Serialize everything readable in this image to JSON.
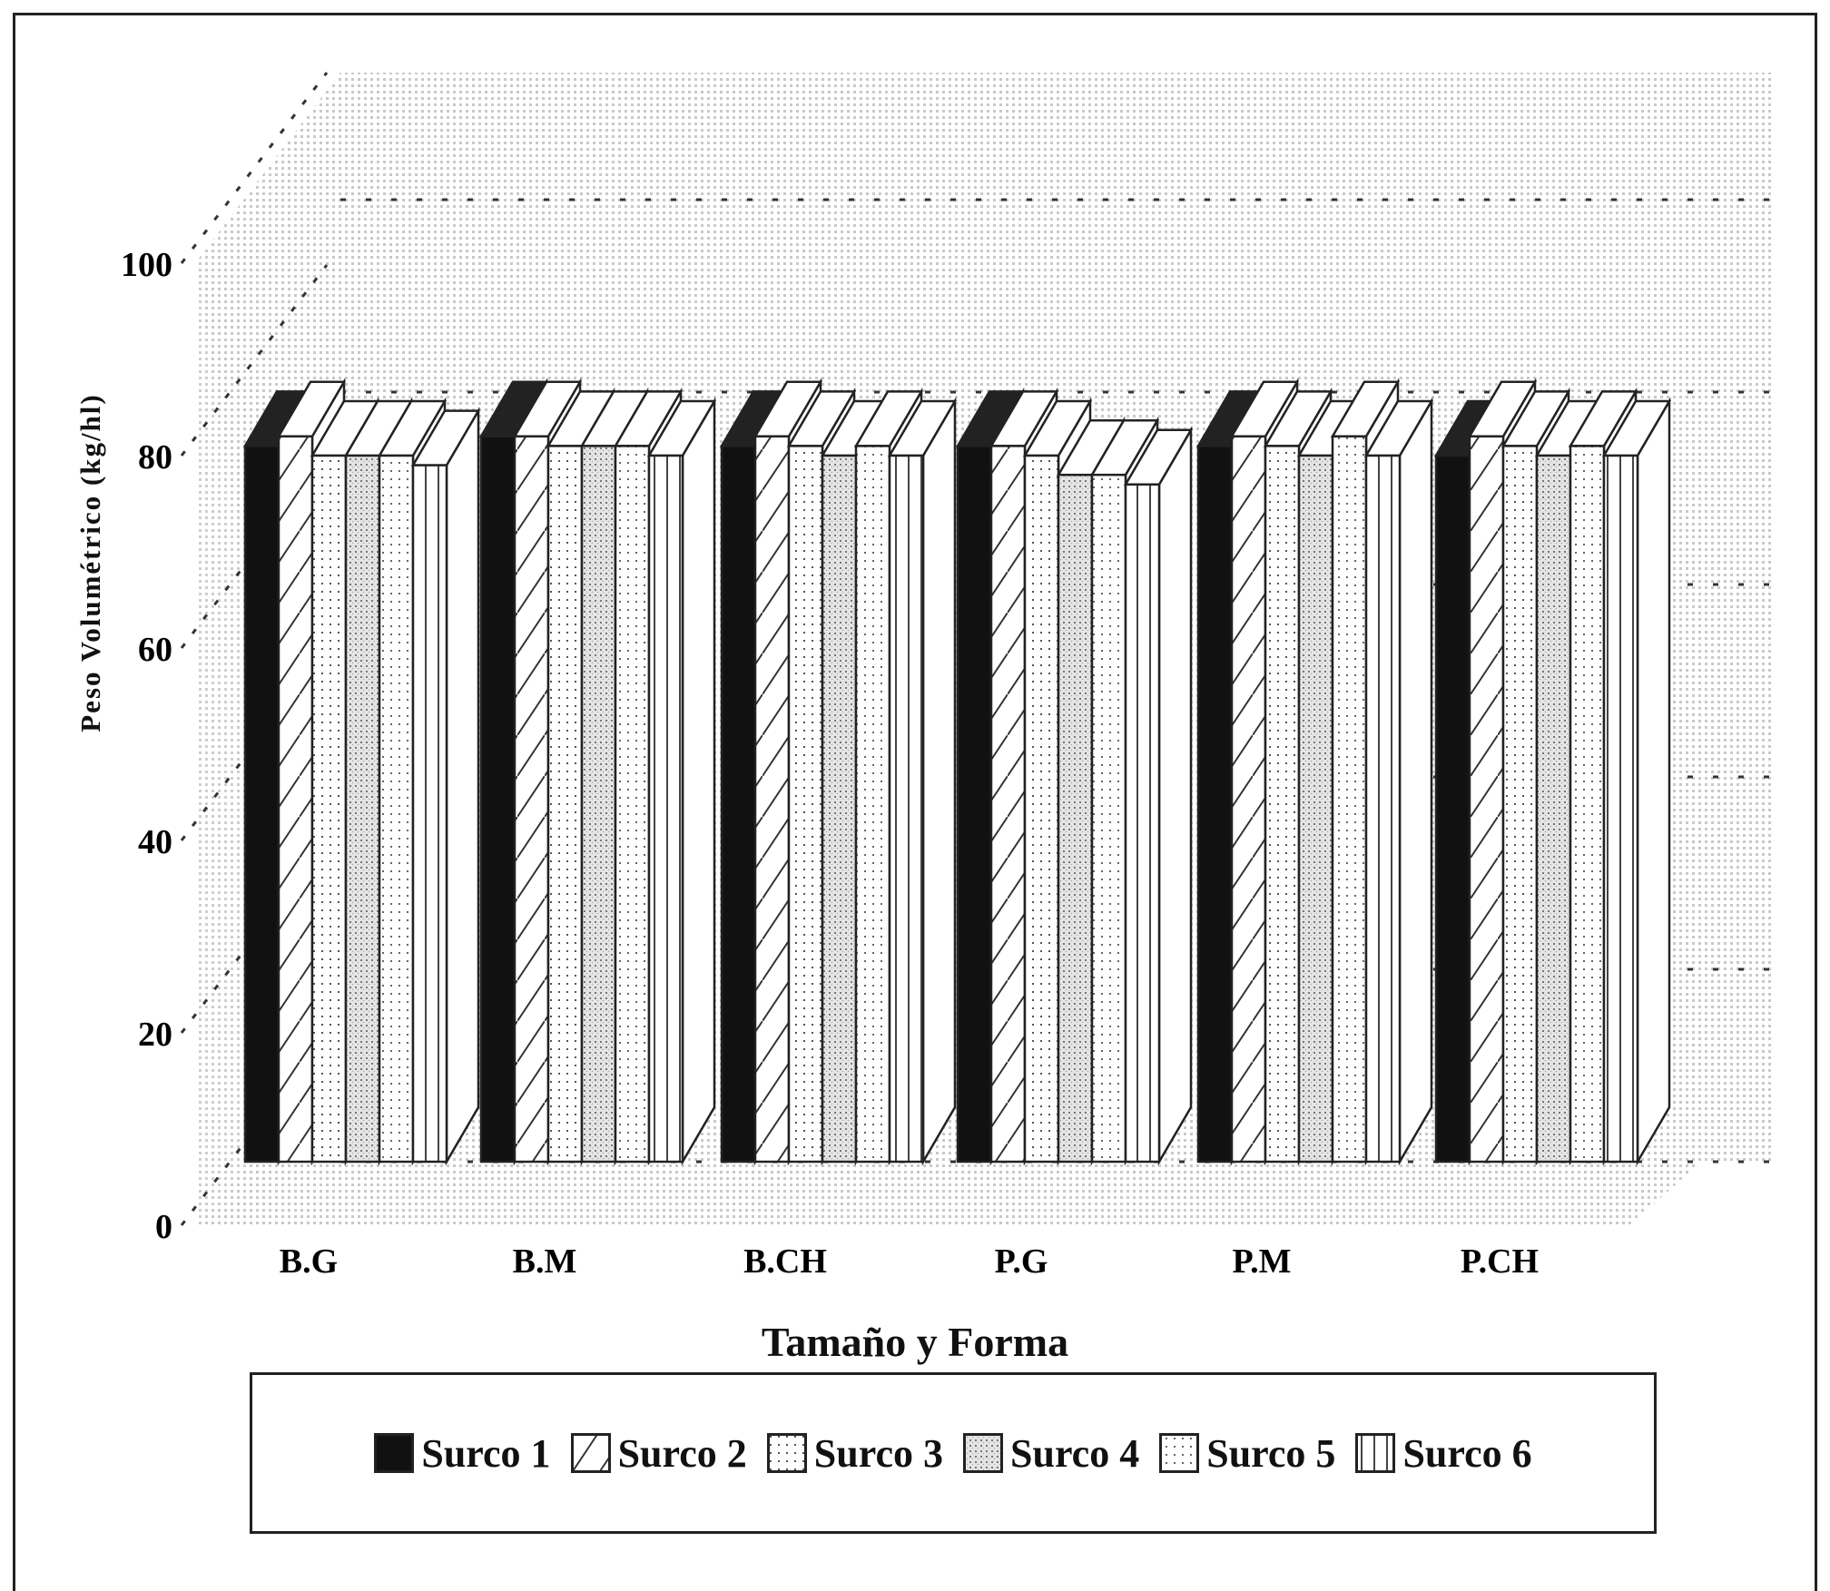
{
  "chart_data": {
    "type": "bar",
    "title": "",
    "xlabel": "Tamaño y Forma",
    "ylabel": "Peso Volumétrico (kg/hl)",
    "ylim": [
      0,
      100
    ],
    "yticks": [
      "0",
      "20",
      "40",
      "60",
      "80",
      "100"
    ],
    "categories": [
      "B.G",
      "B.M",
      "B.CH",
      "P.G",
      "P.M",
      "P.CH"
    ],
    "series": [
      {
        "name": "Surco 1",
        "values": [
          81,
          82,
          81,
          81,
          81,
          80
        ]
      },
      {
        "name": "Surco 2",
        "values": [
          82,
          82,
          82,
          81,
          82,
          82
        ]
      },
      {
        "name": "Surco 3",
        "values": [
          80,
          81,
          81,
          80,
          81,
          81
        ]
      },
      {
        "name": "Surco 4",
        "values": [
          80,
          81,
          80,
          78,
          80,
          80
        ]
      },
      {
        "name": "Surco 5",
        "values": [
          80,
          81,
          81,
          78,
          82,
          81
        ]
      },
      {
        "name": "Surco 6",
        "values": [
          79,
          80,
          80,
          77,
          80,
          80
        ]
      }
    ],
    "legend_position": "bottom",
    "grid": true,
    "style": "3d-bars"
  }
}
